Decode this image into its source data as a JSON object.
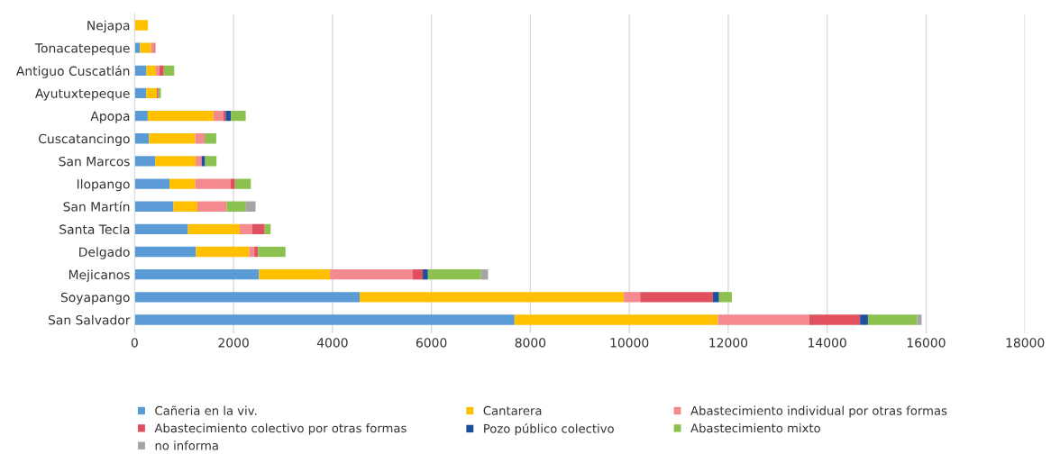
{
  "chart_data": {
    "type": "bar",
    "orientation": "horizontal",
    "stacked": true,
    "categories": [
      "Nejapa",
      "Tonacatepeque",
      "Antiguo Cuscatlán",
      "Ayutuxtepeque",
      "Apopa",
      "Cuscatancingo",
      "San Marcos",
      "Ilopango",
      "San Martín",
      "Santa Tecla",
      "Delgado",
      "Mejicanos",
      "Soyapango",
      "San Salvador"
    ],
    "series": [
      {
        "name": "Cañeria en la viv.",
        "color": "#5b9bd5",
        "values": [
          0,
          110,
          240,
          235,
          265,
          290,
          415,
          705,
          785,
          1080,
          1240,
          2515,
          4550,
          7680
        ]
      },
      {
        "name": "Cantarera",
        "color": "#ffc000",
        "values": [
          270,
          220,
          190,
          215,
          1330,
          935,
          820,
          520,
          485,
          1045,
          1075,
          1435,
          5340,
          4110
        ]
      },
      {
        "name": "Abastecimiento individual por otras formas",
        "color": "#f4898f",
        "values": [
          0,
          70,
          70,
          0,
          195,
          190,
          120,
          715,
          590,
          250,
          105,
          1665,
          330,
          1845
        ]
      },
      {
        "name": "Abastecimiento colectivo por otras formas",
        "color": "#e0505f",
        "values": [
          0,
          20,
          90,
          30,
          50,
          0,
          0,
          90,
          0,
          255,
          75,
          210,
          1470,
          1030
        ]
      },
      {
        "name": "Pozo público colectivo",
        "color": "#1f4e9c",
        "values": [
          0,
          0,
          0,
          0,
          105,
          0,
          70,
          0,
          0,
          0,
          0,
          105,
          125,
          160
        ]
      },
      {
        "name": "Abastecimiento mixto",
        "color": "#8cc04f",
        "values": [
          0,
          0,
          210,
          50,
          300,
          235,
          230,
          320,
          390,
          120,
          555,
          1075,
          260,
          995
        ]
      },
      {
        "name": "no informa",
        "color": "#a5a5a5",
        "values": [
          0,
          0,
          0,
          0,
          0,
          0,
          0,
          0,
          195,
          0,
          0,
          140,
          0,
          90
        ]
      }
    ],
    "xlim": [
      0,
      18000
    ],
    "xticks": [
      0,
      2000,
      4000,
      6000,
      8000,
      10000,
      12000,
      14000,
      16000,
      18000
    ],
    "grid": "x",
    "legend": "bottom"
  }
}
